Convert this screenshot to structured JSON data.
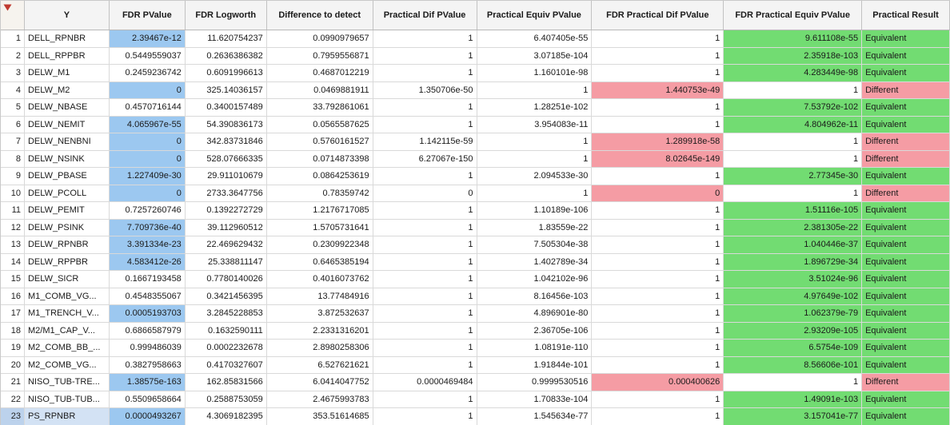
{
  "table": {
    "corner_icon": "red-triangle-menu",
    "colors": {
      "significant_blue": "#9cc8f0",
      "equivalent_green": "#72dc72",
      "different_pink": "#f59ca4",
      "selected_row_blue": "#bcd2ec",
      "red_triangle": "#c03a30"
    },
    "columns": [
      {
        "label": "Y",
        "key": "y",
        "align": "left"
      },
      {
        "label": "FDR PValue",
        "key": "fdr_pvalue",
        "align": "right"
      },
      {
        "label": "FDR Logworth",
        "key": "fdr_logworth",
        "align": "right"
      },
      {
        "label": "Difference to detect",
        "key": "difference_to_detect",
        "align": "right"
      },
      {
        "label": "Practical Dif PValue",
        "key": "practical_dif_pvalue",
        "align": "right"
      },
      {
        "label": "Practical Equiv PValue",
        "key": "practical_equiv_pvalue",
        "align": "right"
      },
      {
        "label": "FDR Practical Dif PValue",
        "key": "fdr_practical_dif_pvalue",
        "align": "right"
      },
      {
        "label": "FDR Practical Equiv PValue",
        "key": "fdr_practical_equiv_pvalue",
        "align": "right"
      },
      {
        "label": "Practical Result",
        "key": "practical_result",
        "align": "left"
      }
    ],
    "rows": [
      {
        "num": "1",
        "selected": false,
        "cells": [
          "DELL_RPNBR",
          [
            "2.39467e-12",
            "blue"
          ],
          "11.620754237",
          "0.0990979657",
          "1",
          "6.407405e-55",
          "1",
          [
            "9.611108e-55",
            "green"
          ],
          [
            "Equivalent",
            "green"
          ]
        ]
      },
      {
        "num": "2",
        "selected": false,
        "cells": [
          "DELL_RPPBR",
          "0.5449559037",
          "0.2636386382",
          "0.7959556871",
          "1",
          "3.07185e-104",
          "1",
          [
            "2.35918e-103",
            "green"
          ],
          [
            "Equivalent",
            "green"
          ]
        ]
      },
      {
        "num": "3",
        "selected": false,
        "cells": [
          "DELW_M1",
          "0.2459236742",
          "0.6091996613",
          "0.4687012219",
          "1",
          "1.160101e-98",
          "1",
          [
            "4.283449e-98",
            "green"
          ],
          [
            "Equivalent",
            "green"
          ]
        ]
      },
      {
        "num": "4",
        "selected": false,
        "cells": [
          "DELW_M2",
          [
            "0",
            "blue"
          ],
          "325.14036157",
          "0.0469881911",
          "1.350706e-50",
          "1",
          [
            "1.440753e-49",
            "pink"
          ],
          "1",
          [
            "Different",
            "pink"
          ]
        ]
      },
      {
        "num": "5",
        "selected": false,
        "cells": [
          "DELW_NBASE",
          "0.4570716144",
          "0.3400157489",
          "33.792861061",
          "1",
          "1.28251e-102",
          "1",
          [
            "7.53792e-102",
            "green"
          ],
          [
            "Equivalent",
            "green"
          ]
        ]
      },
      {
        "num": "6",
        "selected": false,
        "cells": [
          "DELW_NEMIT",
          [
            "4.065967e-55",
            "blue"
          ],
          "54.390836173",
          "0.0565587625",
          "1",
          "3.954083e-11",
          "1",
          [
            "4.804962e-11",
            "green"
          ],
          [
            "Equivalent",
            "green"
          ]
        ]
      },
      {
        "num": "7",
        "selected": false,
        "cells": [
          "DELW_NENBNI",
          [
            "0",
            "blue"
          ],
          "342.83731846",
          "0.5760161527",
          "1.142115e-59",
          "1",
          [
            "1.289918e-58",
            "pink"
          ],
          "1",
          [
            "Different",
            "pink"
          ]
        ]
      },
      {
        "num": "8",
        "selected": false,
        "cells": [
          "DELW_NSINK",
          [
            "0",
            "blue"
          ],
          "528.07666335",
          "0.0714873398",
          "6.27067e-150",
          "1",
          [
            "8.02645e-149",
            "pink"
          ],
          "1",
          [
            "Different",
            "pink"
          ]
        ]
      },
      {
        "num": "9",
        "selected": false,
        "cells": [
          "DELW_PBASE",
          [
            "1.227409e-30",
            "blue"
          ],
          "29.911010679",
          "0.0864253619",
          "1",
          "2.094533e-30",
          "1",
          [
            "2.77345e-30",
            "green"
          ],
          [
            "Equivalent",
            "green"
          ]
        ]
      },
      {
        "num": "10",
        "selected": false,
        "cells": [
          "DELW_PCOLL",
          [
            "0",
            "blue"
          ],
          "2733.3647756",
          "0.78359742",
          "0",
          "1",
          [
            "0",
            "pink"
          ],
          "1",
          [
            "Different",
            "pink"
          ]
        ]
      },
      {
        "num": "11",
        "selected": false,
        "cells": [
          "DELW_PEMIT",
          "0.7257260746",
          "0.1392272729",
          "1.2176717085",
          "1",
          "1.10189e-106",
          "1",
          [
            "1.51116e-105",
            "green"
          ],
          [
            "Equivalent",
            "green"
          ]
        ]
      },
      {
        "num": "12",
        "selected": false,
        "cells": [
          "DELW_PSINK",
          [
            "7.709736e-40",
            "blue"
          ],
          "39.112960512",
          "1.5705731641",
          "1",
          "1.83559e-22",
          "1",
          [
            "2.381305e-22",
            "green"
          ],
          [
            "Equivalent",
            "green"
          ]
        ]
      },
      {
        "num": "13",
        "selected": false,
        "cells": [
          "DELW_RPNBR",
          [
            "3.391334e-23",
            "blue"
          ],
          "22.469629432",
          "0.2309922348",
          "1",
          "7.505304e-38",
          "1",
          [
            "1.040446e-37",
            "green"
          ],
          [
            "Equivalent",
            "green"
          ]
        ]
      },
      {
        "num": "14",
        "selected": false,
        "cells": [
          "DELW_RPPBR",
          [
            "4.583412e-26",
            "blue"
          ],
          "25.338811147",
          "0.6465385194",
          "1",
          "1.402789e-34",
          "1",
          [
            "1.896729e-34",
            "green"
          ],
          [
            "Equivalent",
            "green"
          ]
        ]
      },
      {
        "num": "15",
        "selected": false,
        "cells": [
          "DELW_SICR",
          "0.1667193458",
          "0.7780140026",
          "0.4016073762",
          "1",
          "1.042102e-96",
          "1",
          [
            "3.51024e-96",
            "green"
          ],
          [
            "Equivalent",
            "green"
          ]
        ]
      },
      {
        "num": "16",
        "selected": false,
        "cells": [
          "M1_COMB_VG...",
          "0.4548355067",
          "0.3421456395",
          "13.77484916",
          "1",
          "8.16456e-103",
          "1",
          [
            "4.97649e-102",
            "green"
          ],
          [
            "Equivalent",
            "green"
          ]
        ]
      },
      {
        "num": "17",
        "selected": false,
        "cells": [
          "M1_TRENCH_V...",
          [
            "0.0005193703",
            "blue"
          ],
          "3.2845228853",
          "3.872532637",
          "1",
          "4.896901e-80",
          "1",
          [
            "1.062379e-79",
            "green"
          ],
          [
            "Equivalent",
            "green"
          ]
        ]
      },
      {
        "num": "18",
        "selected": false,
        "cells": [
          "M2/M1_CAP_V...",
          "0.6866587979",
          "0.1632590111",
          "2.2331316201",
          "1",
          "2.36705e-106",
          "1",
          [
            "2.93209e-105",
            "green"
          ],
          [
            "Equivalent",
            "green"
          ]
        ]
      },
      {
        "num": "19",
        "selected": false,
        "cells": [
          "M2_COMB_BB_...",
          "0.999486039",
          "0.0002232678",
          "2.8980258306",
          "1",
          "1.08191e-110",
          "1",
          [
            "6.5754e-109",
            "green"
          ],
          [
            "Equivalent",
            "green"
          ]
        ]
      },
      {
        "num": "20",
        "selected": false,
        "cells": [
          "M2_COMB_VG...",
          "0.3827958663",
          "0.4170327607",
          "6.527621621",
          "1",
          "1.91844e-101",
          "1",
          [
            "8.56606e-101",
            "green"
          ],
          [
            "Equivalent",
            "green"
          ]
        ]
      },
      {
        "num": "21",
        "selected": false,
        "cells": [
          "NISO_TUB-TRE...",
          [
            "1.38575e-163",
            "blue"
          ],
          "162.85831566",
          "6.0414047752",
          "0.0000469484",
          "0.9999530516",
          [
            "0.000400626",
            "pink"
          ],
          "1",
          [
            "Different",
            "pink"
          ]
        ]
      },
      {
        "num": "22",
        "selected": false,
        "cells": [
          "NISO_TUB-TUB...",
          "0.5509658664",
          "0.2588753059",
          "2.4675993783",
          "1",
          "1.70833e-104",
          "1",
          [
            "1.49091e-103",
            "green"
          ],
          [
            "Equivalent",
            "green"
          ]
        ]
      },
      {
        "num": "23",
        "selected": true,
        "cells": [
          "PS_RPNBR",
          [
            "0.0000493267",
            "blue"
          ],
          "4.3069182395",
          "353.51614685",
          "1",
          "1.545634e-77",
          "1",
          [
            "3.157041e-77",
            "green"
          ],
          [
            "Equivalent",
            "green"
          ]
        ]
      }
    ]
  }
}
